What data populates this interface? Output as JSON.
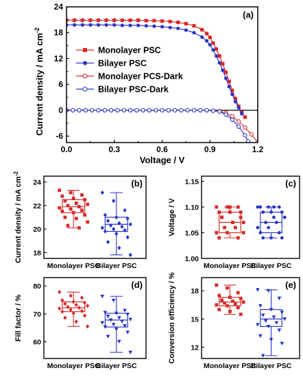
{
  "chart_data": [
    {
      "type": "line",
      "panel": "(a)",
      "xlabel": "Voltage / V",
      "ylabel": "Current density / mA cm",
      "ylabel_sup": "-2",
      "xlim": [
        0.0,
        1.2
      ],
      "ylim": [
        -7.5,
        24
      ],
      "xticks": [
        "0.0",
        "0.3",
        "0.6",
        "0.9",
        "1.2"
      ],
      "yticks": [
        "24",
        "18",
        "12",
        "6",
        "0",
        "-6"
      ],
      "legend_position": "upper-left",
      "series": [
        {
          "name": "Monolayer PSC",
          "color": "#d62a2a",
          "marker": "filled-square",
          "x": [
            0.0,
            0.05,
            0.1,
            0.15,
            0.2,
            0.25,
            0.3,
            0.35,
            0.4,
            0.45,
            0.5,
            0.55,
            0.6,
            0.65,
            0.7,
            0.75,
            0.8,
            0.85,
            0.88,
            0.9,
            0.92,
            0.94,
            0.96,
            0.98,
            1.0,
            1.02,
            1.04,
            1.06,
            1.08,
            1.1,
            1.12
          ],
          "y": [
            20.9,
            20.9,
            20.9,
            20.9,
            20.9,
            20.9,
            20.9,
            20.9,
            20.9,
            20.9,
            20.8,
            20.8,
            20.7,
            20.6,
            20.4,
            20.1,
            19.6,
            18.7,
            17.8,
            16.9,
            15.6,
            14.2,
            12.6,
            10.8,
            8.8,
            6.7,
            4.6,
            2.7,
            0.9,
            -0.5,
            -1.6
          ]
        },
        {
          "name": "Bilayer PSC",
          "color": "#2a35c4",
          "marker": "filled-circle",
          "x": [
            0.0,
            0.05,
            0.1,
            0.15,
            0.2,
            0.25,
            0.3,
            0.35,
            0.4,
            0.45,
            0.5,
            0.55,
            0.6,
            0.65,
            0.7,
            0.75,
            0.8,
            0.85,
            0.88,
            0.9,
            0.92,
            0.94,
            0.96,
            0.98,
            1.0,
            1.02,
            1.04,
            1.06,
            1.08,
            1.1
          ],
          "y": [
            19.8,
            19.8,
            19.8,
            19.8,
            19.8,
            19.8,
            19.8,
            19.7,
            19.7,
            19.7,
            19.6,
            19.5,
            19.4,
            19.2,
            19.0,
            18.6,
            18.0,
            17.0,
            16.1,
            15.2,
            14.0,
            12.6,
            11.0,
            9.3,
            7.4,
            5.5,
            3.7,
            2.0,
            0.6,
            -0.8
          ]
        },
        {
          "name": "Monolayer PCS-Dark",
          "color": "#d62a2a",
          "marker": "open-circle",
          "x": [
            0.0,
            0.04,
            0.08,
            0.12,
            0.16,
            0.2,
            0.24,
            0.28,
            0.32,
            0.36,
            0.4,
            0.44,
            0.48,
            0.52,
            0.56,
            0.6,
            0.64,
            0.68,
            0.72,
            0.76,
            0.8,
            0.84,
            0.88,
            0.92,
            0.96,
            1.0,
            1.04,
            1.08,
            1.12,
            1.16,
            1.2
          ],
          "y": [
            0,
            0,
            0,
            0,
            0,
            0,
            0,
            0,
            0,
            0,
            0,
            0,
            0,
            0,
            0,
            0,
            0,
            0,
            0,
            0,
            0,
            0,
            0,
            -0.1,
            -0.2,
            -0.6,
            -1.4,
            -2.6,
            -4.0,
            -5.6,
            -7.4
          ]
        },
        {
          "name": "Bilayer PSC-Dark",
          "color": "#2a35c4",
          "marker": "open-circle",
          "x": [
            0.0,
            0.04,
            0.08,
            0.12,
            0.16,
            0.2,
            0.24,
            0.28,
            0.32,
            0.36,
            0.4,
            0.44,
            0.48,
            0.52,
            0.56,
            0.6,
            0.64,
            0.68,
            0.72,
            0.76,
            0.8,
            0.84,
            0.88,
            0.92,
            0.96,
            1.0,
            1.04,
            1.08,
            1.12,
            1.14
          ],
          "y": [
            0,
            0,
            0,
            0,
            0,
            0,
            0,
            0,
            0,
            0,
            0,
            0,
            0,
            0,
            0,
            0,
            0,
            0,
            0,
            0,
            0,
            0,
            0,
            -0.1,
            -0.3,
            -1.0,
            -2.2,
            -3.8,
            -5.8,
            -7.2
          ]
        }
      ]
    },
    {
      "type": "box",
      "panel": "(b)",
      "ylabel": "Current density / mA cm",
      "ylabel_sup": "-2",
      "categories": [
        "Monolayer PSC",
        "Bilayer PSC"
      ],
      "ylim": [
        17.5,
        24.5
      ],
      "yticks": [
        "24",
        "22",
        "20",
        "18"
      ],
      "series": [
        {
          "name": "Monolayer PSC",
          "color": "#d62a2a",
          "marker": "square",
          "min": 20.1,
          "q1": 21.4,
          "median": 21.9,
          "q3": 22.5,
          "max": 23.3,
          "points": [
            23.3,
            23.1,
            22.9,
            22.8,
            22.6,
            22.5,
            22.4,
            22.2,
            22.1,
            22.0,
            21.9,
            21.8,
            21.7,
            21.6,
            21.5,
            21.4,
            21.2,
            21.0,
            20.9,
            20.6,
            20.3,
            20.1
          ]
        },
        {
          "name": "Bilayer PSC",
          "color": "#2a35c4",
          "marker": "diamond",
          "min": 17.8,
          "q1": 19.8,
          "median": 20.4,
          "q3": 21.0,
          "max": 23.1,
          "points": [
            23.1,
            22.4,
            21.6,
            21.2,
            21.0,
            20.9,
            20.7,
            20.5,
            20.4,
            20.3,
            20.2,
            20.1,
            20.0,
            19.9,
            19.8,
            19.6,
            19.3,
            18.9,
            18.4,
            17.8
          ]
        }
      ]
    },
    {
      "type": "box",
      "panel": "(c)",
      "ylabel": "Voltage / V",
      "categories": [
        "Monolayer PSC",
        "Bilayer PSC"
      ],
      "ylim": [
        1.0,
        1.16
      ],
      "yticks": [
        "1.15",
        "1.10",
        "1.05",
        "1.00"
      ],
      "series": [
        {
          "name": "Monolayer PSC",
          "color": "#d62a2a",
          "marker": "square",
          "min": 1.04,
          "q1": 1.05,
          "median": 1.07,
          "q3": 1.09,
          "max": 1.1,
          "points": [
            1.1,
            1.1,
            1.1,
            1.09,
            1.09,
            1.08,
            1.08,
            1.07,
            1.07,
            1.06,
            1.06,
            1.05,
            1.05,
            1.04,
            1.04,
            1.1,
            1.09,
            1.08,
            1.07,
            1.05
          ]
        },
        {
          "name": "Bilayer PSC",
          "color": "#2a35c4",
          "marker": "circle",
          "min": 1.04,
          "q1": 1.05,
          "median": 1.07,
          "q3": 1.09,
          "max": 1.1,
          "points": [
            1.1,
            1.1,
            1.1,
            1.1,
            1.09,
            1.09,
            1.09,
            1.08,
            1.08,
            1.07,
            1.07,
            1.06,
            1.06,
            1.05,
            1.05,
            1.04,
            1.04,
            1.04,
            1.1,
            1.08
          ]
        }
      ]
    },
    {
      "type": "box",
      "panel": "(d)",
      "ylabel": "Fill factor / %",
      "categories": [
        "Monolayer PSC",
        "Bilayer PSC"
      ],
      "ylim": [
        54,
        83
      ],
      "yticks": [
        "80",
        "70",
        "60"
      ],
      "series": [
        {
          "name": "Monolayer PSC",
          "color": "#d62a2a",
          "marker": "diamond",
          "min": 65.5,
          "q1": 70.8,
          "median": 72.2,
          "q3": 74.3,
          "max": 77.8,
          "points": [
            77.8,
            76.5,
            75.8,
            74.9,
            74.3,
            74.0,
            73.6,
            73.2,
            72.9,
            72.5,
            72.2,
            71.9,
            71.5,
            71.0,
            70.8,
            70.2,
            69.4,
            68.6,
            67.2,
            65.5
          ]
        },
        {
          "name": "Bilayer PSC",
          "color": "#2a35c4",
          "marker": "triangle-down",
          "min": 56.2,
          "q1": 65.3,
          "median": 67.8,
          "q3": 70.2,
          "max": 76.3,
          "points": [
            76.3,
            74.8,
            71.2,
            70.5,
            70.2,
            69.8,
            69.1,
            68.6,
            68.0,
            67.8,
            67.3,
            66.8,
            66.2,
            65.7,
            65.3,
            64.5,
            63.4,
            61.9,
            60.1,
            56.2
          ]
        }
      ]
    },
    {
      "type": "box",
      "panel": "(e)",
      "ylabel": "Conversion efficiency / %",
      "categories": [
        "Monolayer PSC",
        "Bilayer PSC"
      ],
      "ylim": [
        10.8,
        19.4
      ],
      "yticks": [
        "18",
        "15",
        "12"
      ],
      "series": [
        {
          "name": "Monolayer PSC",
          "color": "#d62a2a",
          "marker": "square",
          "min": 15.5,
          "q1": 16.4,
          "median": 16.8,
          "q3": 17.3,
          "max": 18.6,
          "points": [
            18.6,
            18.3,
            17.8,
            17.5,
            17.3,
            17.2,
            17.0,
            16.9,
            16.8,
            16.7,
            16.6,
            16.5,
            16.4,
            16.2,
            16.0,
            15.8,
            15.5
          ]
        },
        {
          "name": "Bilayer PSC",
          "color": "#2a35c4",
          "marker": "triangle-down",
          "min": 11.1,
          "q1": 14.2,
          "median": 15.0,
          "q3": 16.0,
          "max": 18.1,
          "points": [
            18.1,
            18.0,
            17.2,
            16.4,
            16.0,
            15.7,
            15.4,
            15.2,
            15.0,
            14.8,
            14.6,
            14.4,
            14.2,
            13.8,
            13.2,
            12.8,
            12.4,
            11.1
          ]
        }
      ]
    }
  ]
}
